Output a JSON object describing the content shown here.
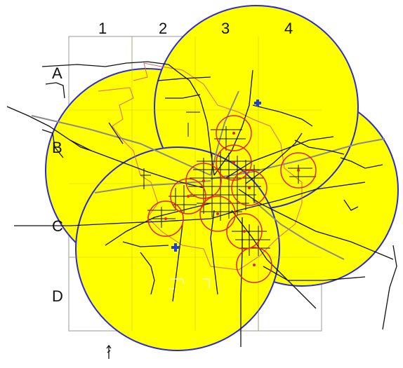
{
  "map": {
    "column_labels": [
      "1",
      "2",
      "3",
      "4"
    ],
    "row_labels": [
      "A",
      "B",
      "C",
      "D"
    ],
    "colors": {
      "coverage_fill": "#ffff00",
      "coverage_stroke": "#2b2bd6",
      "station_ring": "#e32222",
      "grid": "#9a9a9a",
      "road": "#111111",
      "highway": "#8a8a8a",
      "boundary": "#e06464",
      "facility_marker": "#1f3fd0"
    },
    "icons": {
      "facility": "hospital-cross-icon",
      "north": "north-arrow-icon"
    }
  }
}
